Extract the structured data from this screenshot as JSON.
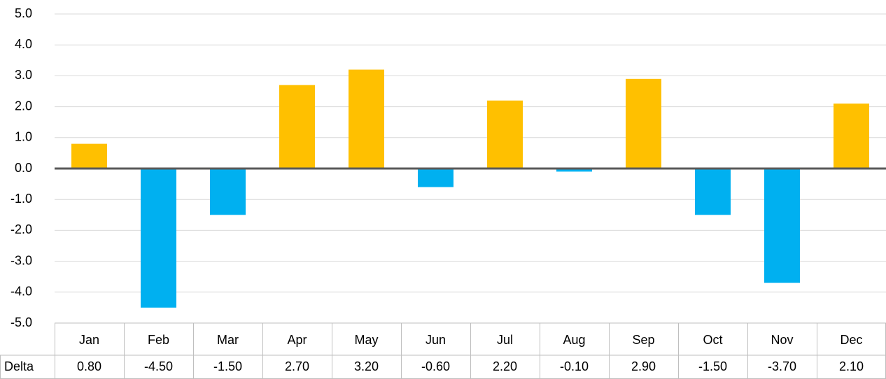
{
  "chart_data": {
    "type": "bar",
    "categories": [
      "Jan",
      "Feb",
      "Mar",
      "Apr",
      "May",
      "Jun",
      "Jul",
      "Aug",
      "Sep",
      "Oct",
      "Nov",
      "Dec"
    ],
    "series": [
      {
        "name": "Delta",
        "values": [
          0.8,
          -4.5,
          -1.5,
          2.7,
          3.2,
          -0.6,
          2.2,
          -0.1,
          2.9,
          -1.5,
          -3.7,
          2.1
        ],
        "value_labels": [
          "0.80",
          "-4.50",
          "-1.50",
          "2.70",
          "3.20",
          "-0.60",
          "2.20",
          "-0.10",
          "2.90",
          "-1.50",
          "-3.70",
          "2.10"
        ]
      }
    ],
    "color_positive": "#ffc000",
    "color_negative": "#00b0f0",
    "ylim": [
      -5,
      5
    ],
    "yticks": [
      {
        "value": 5,
        "label": "5.0"
      },
      {
        "value": 4,
        "label": "4.0"
      },
      {
        "value": 3,
        "label": "3.0"
      },
      {
        "value": 2,
        "label": "2.0"
      },
      {
        "value": 1,
        "label": "1.0"
      },
      {
        "value": 0,
        "label": "0.0"
      },
      {
        "value": -1,
        "label": "-1.0"
      },
      {
        "value": -2,
        "label": "-2.0"
      },
      {
        "value": -3,
        "label": "-3.0"
      },
      {
        "value": -4,
        "label": "-4.0"
      },
      {
        "value": -5,
        "label": "-5.0"
      }
    ],
    "grid": true,
    "data_table": true
  }
}
